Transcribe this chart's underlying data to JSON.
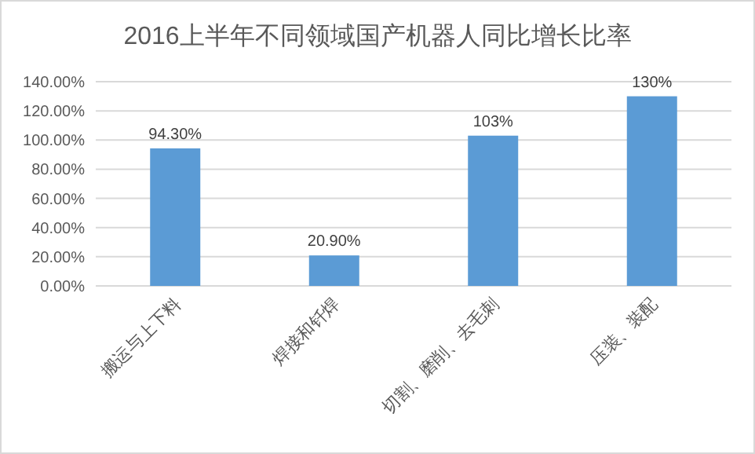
{
  "chart_data": {
    "type": "bar",
    "title": "2016上半年不同领域国产机器人同比增长比率",
    "categories": [
      "搬运与上下料",
      "焊接和钎焊",
      "切割、磨削、去毛刺",
      "压装、装配"
    ],
    "values": [
      94.3,
      20.9,
      103,
      130
    ],
    "value_labels": [
      "94.30%",
      "20.90%",
      "103%",
      "130%"
    ],
    "color": "#5b9bd5",
    "ylim": [
      0,
      140
    ],
    "yticks": [
      {
        "value": 0,
        "label": "0.00%"
      },
      {
        "value": 20,
        "label": "20.00%"
      },
      {
        "value": 40,
        "label": "40.00%"
      },
      {
        "value": 60,
        "label": "60.00%"
      },
      {
        "value": 80,
        "label": "80.00%"
      },
      {
        "value": 100,
        "label": "100.00%"
      },
      {
        "value": 120,
        "label": "120.00%"
      },
      {
        "value": 140,
        "label": "140.00%"
      }
    ],
    "grid": "y"
  }
}
